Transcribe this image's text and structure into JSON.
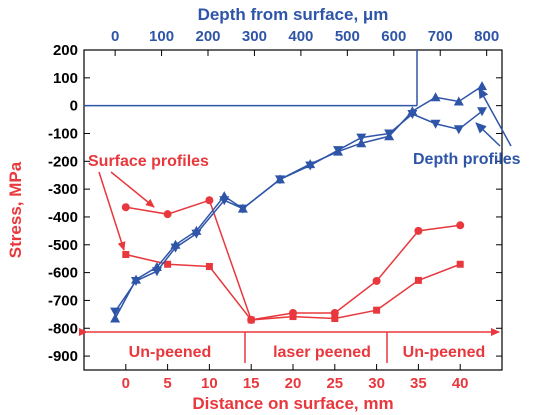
{
  "colors": {
    "surface": "#e8383d",
    "depth": "#2f55a8",
    "axis": "#000000"
  },
  "chart_data": [
    {
      "type": "line",
      "title": "",
      "xlabel": "Distance on surface, mm",
      "ylabel": "Stress, MPa",
      "xlim": [
        -5,
        45
      ],
      "ylim": [
        -950,
        200
      ],
      "xticks": [
        "0",
        "5",
        "10",
        "15",
        "20",
        "25",
        "30",
        "35",
        "40"
      ],
      "yticks": [
        "200",
        "100",
        "0",
        "-100",
        "-200",
        "-300",
        "-400",
        "-500",
        "-600",
        "-700",
        "-800",
        "-900"
      ],
      "annotation": "Surface profiles",
      "regions": [
        {
          "label": "Un-peened",
          "from": -5,
          "to": 12.5
        },
        {
          "label": "laser peened",
          "from": 12.5,
          "to": 28
        },
        {
          "label": "Un-peened",
          "from": 28,
          "to": 45
        }
      ],
      "series": [
        {
          "marker": "circle",
          "x": [
            0,
            5,
            10,
            15,
            20,
            25,
            30,
            35,
            40
          ],
          "y": [
            -365,
            -390,
            -340,
            -770,
            -745,
            -745,
            -630,
            -450,
            -430
          ]
        },
        {
          "marker": "square",
          "x": [
            0,
            5,
            10,
            15,
            20,
            25,
            30,
            35,
            40
          ],
          "y": [
            -535,
            -570,
            -578,
            -770,
            -758,
            -765,
            -735,
            -628,
            -570
          ]
        }
      ]
    },
    {
      "type": "line",
      "xlabel": "Depth from surface, μm",
      "xlim": [
        -67,
        833
      ],
      "xticks": [
        "0",
        "100",
        "200",
        "300",
        "400",
        "500",
        "600",
        "700",
        "800"
      ],
      "annotation": "Depth profiles",
      "reference_line": {
        "y": 0,
        "x_end": 650
      },
      "series": [
        {
          "marker": "triangle-up",
          "x": [
            0,
            45,
            90,
            130,
            175,
            235,
            275,
            355,
            420,
            480,
            530,
            590,
            640,
            690,
            740,
            790
          ],
          "y": [
            -765,
            -625,
            -580,
            -500,
            -450,
            -325,
            -370,
            -265,
            -210,
            -165,
            -135,
            -110,
            -20,
            30,
            15,
            70
          ]
        },
        {
          "marker": "triangle-down",
          "x": [
            0,
            45,
            90,
            130,
            175,
            235,
            275,
            355,
            420,
            480,
            530,
            590,
            640,
            690,
            740,
            790
          ],
          "y": [
            -740,
            -630,
            -595,
            -510,
            -460,
            -340,
            -370,
            -265,
            -215,
            -160,
            -115,
            -100,
            -30,
            -65,
            -85,
            -20
          ]
        }
      ]
    }
  ]
}
